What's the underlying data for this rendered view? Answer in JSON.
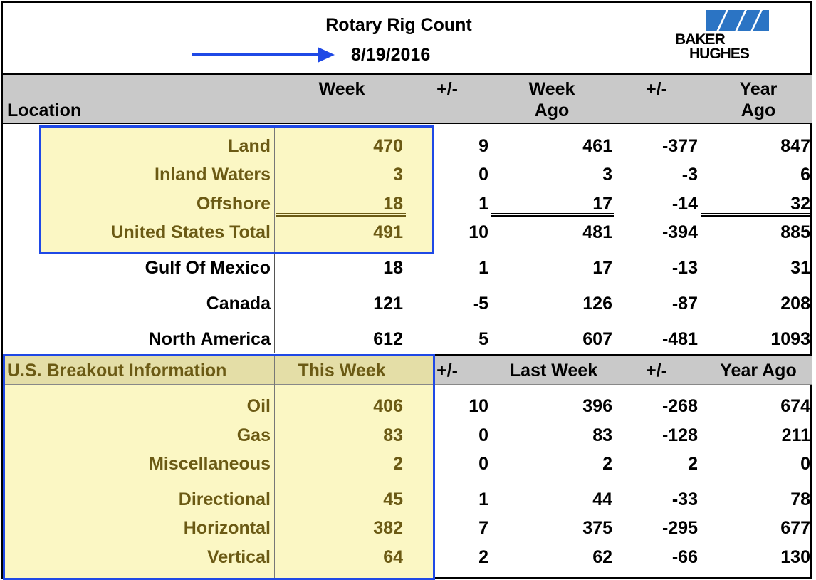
{
  "title": "Rotary Rig Count",
  "date": "8/19/2016",
  "logo": {
    "line1": "BAKER",
    "line2": "HUGHES",
    "color": "#2b74c4"
  },
  "header": {
    "location": "Location",
    "week": "Week",
    "pm1": "+/-",
    "week_ago_1": "Week",
    "week_ago_2": "Ago",
    "pm2": "+/-",
    "year_ago_1": "Year",
    "year_ago_2": "Ago"
  },
  "rows": [
    {
      "label": "Land",
      "week": "470",
      "pm1": "9",
      "week_ago": "461",
      "pm2": "-377",
      "year_ago": "847"
    },
    {
      "label": "Inland Waters",
      "week": "3",
      "pm1": "0",
      "week_ago": "3",
      "pm2": "-3",
      "year_ago": "6"
    },
    {
      "label": "Offshore",
      "week": "18",
      "pm1": "1",
      "week_ago": "17",
      "pm2": "-14",
      "year_ago": "32"
    },
    {
      "label": "United States Total",
      "week": "491",
      "pm1": "10",
      "week_ago": "481",
      "pm2": "-394",
      "year_ago": "885"
    },
    {
      "label": "Gulf Of Mexico",
      "week": "18",
      "pm1": "1",
      "week_ago": "17",
      "pm2": "-13",
      "year_ago": "31"
    },
    {
      "label": "Canada",
      "week": "121",
      "pm1": "-5",
      "week_ago": "126",
      "pm2": "-87",
      "year_ago": "208"
    },
    {
      "label": "North America",
      "week": "612",
      "pm1": "5",
      "week_ago": "607",
      "pm2": "-481",
      "year_ago": "1093"
    }
  ],
  "breakout_header": {
    "label": "U.S. Breakout Information",
    "this_week": "This Week",
    "pm1": "+/-",
    "last_week": "Last Week",
    "pm2": "+/-",
    "year_ago": "Year Ago"
  },
  "breakout_rows": [
    {
      "label": "Oil",
      "week": "406",
      "pm1": "10",
      "week_ago": "396",
      "pm2": "-268",
      "year_ago": "674"
    },
    {
      "label": "Gas",
      "week": "83",
      "pm1": "0",
      "week_ago": "83",
      "pm2": "-128",
      "year_ago": "211"
    },
    {
      "label": "Miscellaneous",
      "week": "2",
      "pm1": "0",
      "week_ago": "2",
      "pm2": "2",
      "year_ago": "0"
    },
    {
      "label": "Directional",
      "week": "45",
      "pm1": "1",
      "week_ago": "44",
      "pm2": "-33",
      "year_ago": "78"
    },
    {
      "label": "Horizontal",
      "week": "382",
      "pm1": "7",
      "week_ago": "375",
      "pm2": "-295",
      "year_ago": "677"
    },
    {
      "label": "Vertical",
      "week": "64",
      "pm1": "2",
      "week_ago": "62",
      "pm2": "-66",
      "year_ago": "130"
    }
  ],
  "colors": {
    "highlight": "#fbf7c4",
    "olive_text": "#6b5a14",
    "blue_box": "#1f49e6",
    "header_gray": "#c9c9c9"
  }
}
